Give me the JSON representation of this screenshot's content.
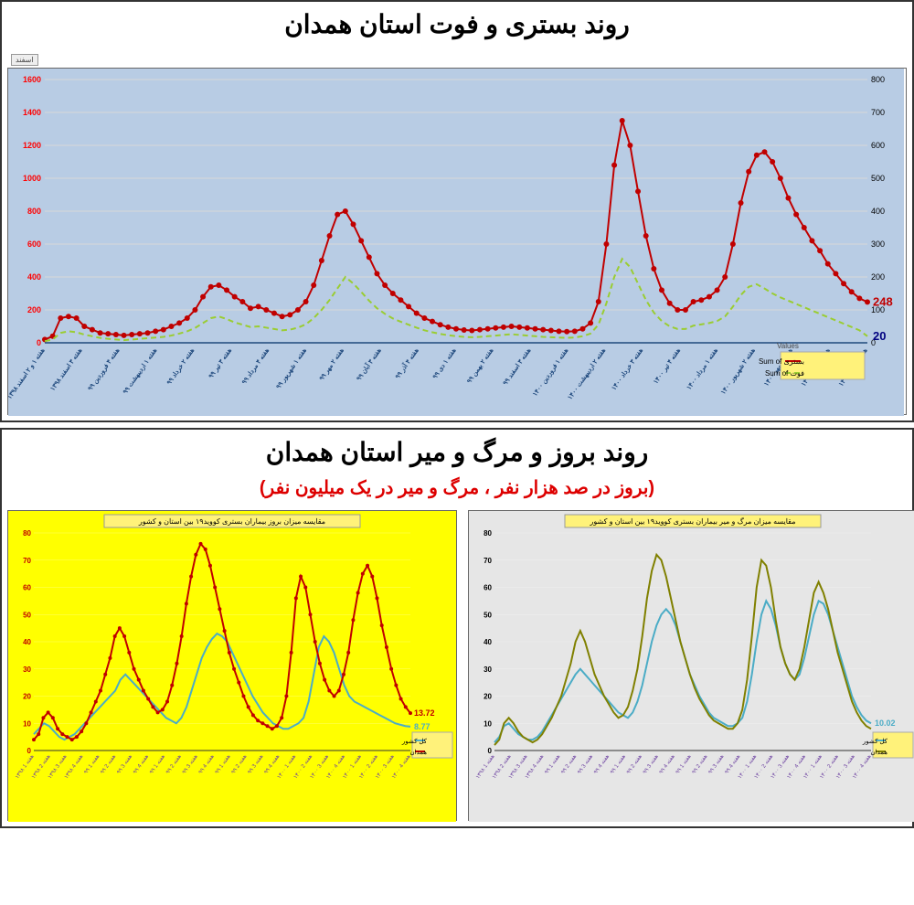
{
  "top": {
    "title": "روند بستری و فوت استان همدان",
    "chart": {
      "type": "line-dual-axis",
      "background": "#b8cce4",
      "grid_color": "#d9d9d9",
      "plot_bg": "#b8cce4",
      "left_axis": {
        "min": 0,
        "max": 1600,
        "step": 200,
        "color": "#ff0000"
      },
      "right_axis": {
        "min": 0,
        "max": 800,
        "step": 100,
        "color": "#000000"
      },
      "series": [
        {
          "name": "بستری Sum of",
          "color": "#c00000",
          "marker": "circle",
          "marker_size": 3,
          "line_width": 2,
          "end_label": "248",
          "end_label_color": "#c00000",
          "data": [
            20,
            40,
            150,
            160,
            150,
            100,
            80,
            60,
            55,
            50,
            45,
            50,
            55,
            60,
            70,
            80,
            100,
            120,
            150,
            200,
            280,
            340,
            350,
            320,
            280,
            250,
            210,
            220,
            200,
            180,
            160,
            170,
            200,
            250,
            350,
            500,
            650,
            780,
            800,
            720,
            620,
            520,
            420,
            350,
            300,
            260,
            220,
            180,
            150,
            130,
            110,
            95,
            85,
            78,
            75,
            80,
            85,
            90,
            95,
            100,
            95,
            90,
            85,
            80,
            75,
            70,
            68,
            70,
            85,
            120,
            250,
            600,
            1080,
            1350,
            1200,
            920,
            650,
            450,
            320,
            240,
            200,
            200,
            250,
            260,
            280,
            320,
            400,
            600,
            850,
            1040,
            1140,
            1160,
            1100,
            1000,
            880,
            780,
            700,
            620,
            560,
            480,
            420,
            360,
            310,
            270,
            248
          ]
        },
        {
          "name": "فوت Sum of",
          "color": "#9acd32",
          "line_dash": "6,4",
          "line_width": 2,
          "end_label": "20",
          "end_label_color": "#000080",
          "data": [
            5,
            10,
            30,
            35,
            32,
            25,
            20,
            15,
            12,
            10,
            8,
            10,
            12,
            14,
            16,
            18,
            22,
            28,
            35,
            45,
            60,
            75,
            80,
            72,
            62,
            55,
            48,
            50,
            46,
            42,
            38,
            40,
            46,
            56,
            75,
            100,
            130,
            165,
            200,
            180,
            155,
            128,
            105,
            88,
            74,
            64,
            55,
            46,
            38,
            32,
            27,
            23,
            20,
            18,
            17,
            18,
            20,
            22,
            24,
            26,
            24,
            22,
            20,
            18,
            17,
            16,
            15,
            16,
            20,
            28,
            55,
            120,
            200,
            255,
            230,
            180,
            130,
            92,
            66,
            50,
            42,
            42,
            52,
            56,
            60,
            66,
            80,
            110,
            145,
            170,
            178,
            165,
            150,
            138,
            128,
            118,
            108,
            98,
            88,
            78,
            68,
            58,
            48,
            38,
            20
          ]
        }
      ],
      "legend": {
        "position": "bottom-right",
        "items": [
          {
            "label": "بستری Sum of",
            "color": "#c00000",
            "dash": ""
          },
          {
            "label": "فوت Sum of",
            "color": "#9acd32",
            "dash": "6,4"
          }
        ]
      },
      "x_label_sample": [
        "هفته ۱ و ۲ اسفند ۱۳۹۸",
        "هفته ۳ اسفند ۱۳۹۸",
        "هفته ۴ فروردین ۹۹",
        "هفته ۱ اردیبهشت ۹۹",
        "هفته ۲ خرداد ۹۹",
        "هفته ۳ تیر ۹۹",
        "هفته ۴ مرداد ۹۹",
        "هفته ۱ شهریور ۹۹",
        "هفته ۲ مهر ۹۹",
        "هفته ۳ آبان ۹۹",
        "هفته ۴ آذر ۹۹",
        "هفته ۱ دی ۹۹",
        "هفته ۲ بهمن ۹۹",
        "هفته ۳ اسفند ۹۹",
        "هفته ۱ فروردین ۱۴۰۰",
        "هفته ۲ اردیبهشت ۱۴۰۰",
        "هفته ۳ خرداد ۱۴۰۰",
        "هفته ۴ تیر ۱۴۰۰",
        "هفته ۱ مرداد ۱۴۰۰",
        "هفته ۲ شهریور ۱۴۰۰",
        "هفته ۳ مهر ۱۴۰۰",
        "هفته ۱ آبان ۱۴۰۰",
        "هفته ۳ آبان ۱۴۰۰"
      ]
    }
  },
  "bottom": {
    "title": "روند بروز و مرگ و میر استان همدان",
    "subtitle": "(بروز در صد هزار نفر ، مرگ و میر در یک میلیون نفر)",
    "left_chart": {
      "type": "line",
      "background": "#ffff00",
      "title": "مقایسه میزان بروز بیماران بستری کووید۱۹ بین استان و کشور",
      "y": {
        "min": 0,
        "max": 80,
        "step": 10,
        "color": "#c00000"
      },
      "series": [
        {
          "name": "کل کشور",
          "color": "#4bacc6",
          "line_width": 2,
          "end_label": "8.77",
          "data": [
            6,
            8,
            10,
            9,
            7,
            5,
            4,
            5,
            6,
            8,
            10,
            12,
            14,
            16,
            18,
            20,
            22,
            26,
            28,
            26,
            24,
            22,
            20,
            18,
            16,
            14,
            12,
            11,
            10,
            12,
            16,
            22,
            28,
            34,
            38,
            41,
            43,
            42,
            40,
            36,
            32,
            28,
            24,
            20,
            17,
            14,
            12,
            10,
            9,
            8,
            8,
            9,
            10,
            12,
            18,
            28,
            38,
            42,
            40,
            36,
            30,
            24,
            20,
            18,
            17,
            16,
            15,
            14,
            13,
            12,
            11,
            10,
            9.5,
            9,
            8.77
          ]
        },
        {
          "name": "همدان",
          "color": "#c00000",
          "line_width": 2,
          "marker": "circle",
          "marker_size": 2,
          "end_label": "13.72",
          "data": [
            4,
            6,
            12,
            14,
            12,
            8,
            6,
            5,
            4,
            5,
            7,
            10,
            14,
            18,
            22,
            28,
            34,
            42,
            45,
            42,
            36,
            30,
            26,
            22,
            19,
            16,
            14,
            15,
            18,
            24,
            32,
            42,
            54,
            64,
            72,
            76,
            74,
            68,
            60,
            52,
            44,
            36,
            30,
            25,
            20,
            16,
            13,
            11,
            10,
            9,
            8,
            9,
            12,
            20,
            36,
            56,
            64,
            60,
            50,
            40,
            32,
            26,
            22,
            20,
            22,
            28,
            36,
            48,
            58,
            65,
            68,
            64,
            56,
            46,
            38,
            30,
            24,
            19,
            16,
            13.72
          ]
        }
      ],
      "legend_items": [
        {
          "label": "کل کشور",
          "color": "#4bacc6"
        },
        {
          "label": "همدان",
          "color": "#c00000"
        }
      ]
    },
    "right_chart": {
      "type": "line",
      "background": "#e6e6e6",
      "title": "مقایسه میزان مرگ و میر بیماران بستری کووید۱۹ بین استان و کشور",
      "y": {
        "min": 0,
        "max": 80,
        "step": 10,
        "color": "#000000"
      },
      "series": [
        {
          "name": "کل کشور",
          "color": "#4bacc6",
          "line_width": 2,
          "end_label": "10.02",
          "data": [
            3,
            5,
            9,
            10,
            8,
            6,
            5,
            4,
            4,
            5,
            7,
            10,
            13,
            16,
            19,
            22,
            25,
            28,
            30,
            28,
            26,
            24,
            22,
            20,
            18,
            16,
            14,
            13,
            12,
            14,
            18,
            24,
            32,
            40,
            46,
            50,
            52,
            50,
            46,
            40,
            34,
            28,
            24,
            20,
            17,
            14,
            12,
            11,
            10,
            9,
            9,
            10,
            12,
            18,
            28,
            40,
            50,
            55,
            52,
            46,
            38,
            32,
            28,
            26,
            28,
            34,
            42,
            50,
            55,
            54,
            50,
            44,
            38,
            32,
            26,
            20,
            16,
            13,
            11,
            10.02
          ]
        },
        {
          "name": "همدان",
          "color": "#808000",
          "line_width": 2,
          "data": [
            2,
            4,
            10,
            12,
            10,
            7,
            5,
            4,
            3,
            4,
            6,
            9,
            12,
            16,
            20,
            26,
            32,
            40,
            44,
            40,
            34,
            28,
            24,
            20,
            17,
            14,
            12,
            13,
            16,
            22,
            30,
            42,
            56,
            66,
            72,
            70,
            64,
            56,
            48,
            40,
            34,
            28,
            23,
            19,
            16,
            13,
            11,
            10,
            9,
            8,
            8,
            10,
            15,
            26,
            42,
            60,
            70,
            68,
            60,
            48,
            38,
            32,
            28,
            26,
            30,
            38,
            48,
            58,
            62,
            58,
            52,
            44,
            36,
            30,
            24,
            18,
            14,
            11,
            9,
            8
          ]
        }
      ],
      "legend_items": [
        {
          "label": "کل کشور",
          "color": "#4bacc6"
        },
        {
          "label": "همدان",
          "color": "#808000"
        }
      ]
    }
  },
  "tabs": {
    "tab1": "اسفند",
    "values_label": "Values"
  }
}
